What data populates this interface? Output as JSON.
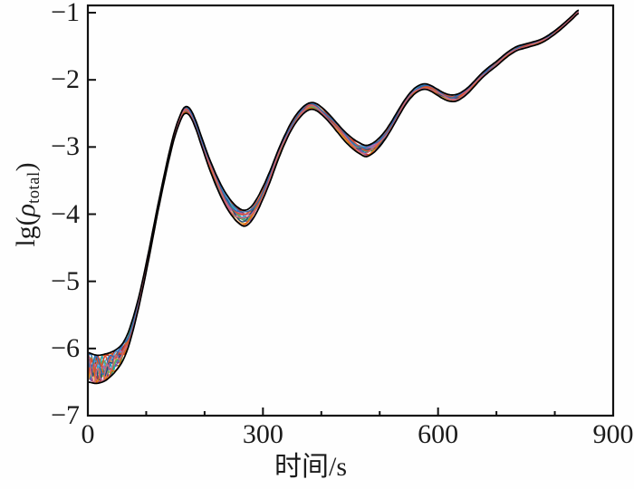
{
  "figure": {
    "background": "#fefefe",
    "frame_color": "#111111",
    "tick_color": "#111111"
  },
  "chart_data": {
    "type": "line",
    "title": "",
    "xlabel": "时间/s",
    "ylabel": {
      "prefix": "lg(",
      "symbol": "ρ",
      "subscript": "total",
      "suffix": ")"
    },
    "xlim": [
      0,
      900
    ],
    "ylim": [
      -7,
      -1
    ],
    "grid": false,
    "legend": null,
    "x_major_ticks": [
      0,
      300,
      600,
      900
    ],
    "x_tick_labels": [
      "0",
      "300",
      "600",
      "900"
    ],
    "x_minor_tick_step": 100,
    "y_major_ticks": [
      -1,
      -2,
      -3,
      -4,
      -5,
      -6,
      -7
    ],
    "y_tick_labels": [
      "−1",
      "−2",
      "−3",
      "−4",
      "−5",
      "−6",
      "−7"
    ],
    "note": "Bundle of ~16 nearly identical repeat curves (colored) inside a black envelope",
    "base_curve": [
      [
        0,
        -6.28
      ],
      [
        15,
        -6.31
      ],
      [
        30,
        -6.28
      ],
      [
        45,
        -6.2
      ],
      [
        58,
        -6.08
      ],
      [
        68,
        -5.9
      ],
      [
        78,
        -5.62
      ],
      [
        88,
        -5.28
      ],
      [
        98,
        -4.88
      ],
      [
        108,
        -4.45
      ],
      [
        118,
        -4.0
      ],
      [
        128,
        -3.58
      ],
      [
        138,
        -3.18
      ],
      [
        148,
        -2.83
      ],
      [
        157,
        -2.6
      ],
      [
        164,
        -2.47
      ],
      [
        170,
        -2.45
      ],
      [
        176,
        -2.5
      ],
      [
        184,
        -2.65
      ],
      [
        194,
        -2.9
      ],
      [
        206,
        -3.2
      ],
      [
        220,
        -3.5
      ],
      [
        234,
        -3.75
      ],
      [
        248,
        -3.93
      ],
      [
        260,
        -4.03
      ],
      [
        268,
        -4.06
      ],
      [
        276,
        -4.03
      ],
      [
        286,
        -3.92
      ],
      [
        298,
        -3.72
      ],
      [
        312,
        -3.44
      ],
      [
        326,
        -3.12
      ],
      [
        340,
        -2.84
      ],
      [
        352,
        -2.64
      ],
      [
        364,
        -2.5
      ],
      [
        374,
        -2.42
      ],
      [
        382,
        -2.39
      ],
      [
        390,
        -2.4
      ],
      [
        400,
        -2.46
      ],
      [
        412,
        -2.56
      ],
      [
        426,
        -2.7
      ],
      [
        440,
        -2.84
      ],
      [
        454,
        -2.95
      ],
      [
        466,
        -3.02
      ],
      [
        476,
        -3.06
      ],
      [
        486,
        -3.03
      ],
      [
        496,
        -2.96
      ],
      [
        508,
        -2.84
      ],
      [
        520,
        -2.68
      ],
      [
        532,
        -2.5
      ],
      [
        544,
        -2.33
      ],
      [
        556,
        -2.2
      ],
      [
        566,
        -2.13
      ],
      [
        576,
        -2.1
      ],
      [
        586,
        -2.12
      ],
      [
        598,
        -2.18
      ],
      [
        610,
        -2.24
      ],
      [
        620,
        -2.27
      ],
      [
        630,
        -2.27
      ],
      [
        640,
        -2.23
      ],
      [
        652,
        -2.15
      ],
      [
        664,
        -2.04
      ],
      [
        676,
        -1.93
      ],
      [
        688,
        -1.84
      ],
      [
        700,
        -1.76
      ],
      [
        712,
        -1.67
      ],
      [
        724,
        -1.59
      ],
      [
        736,
        -1.53
      ],
      [
        748,
        -1.5
      ],
      [
        760,
        -1.47
      ],
      [
        772,
        -1.44
      ],
      [
        784,
        -1.39
      ],
      [
        796,
        -1.32
      ],
      [
        808,
        -1.24
      ],
      [
        820,
        -1.15
      ],
      [
        830,
        -1.07
      ],
      [
        840,
        -0.99
      ]
    ],
    "band_halfwidth": [
      [
        0,
        0.22
      ],
      [
        30,
        0.2
      ],
      [
        60,
        0.13
      ],
      [
        90,
        0.07
      ],
      [
        120,
        0.05
      ],
      [
        160,
        0.045
      ],
      [
        200,
        0.07
      ],
      [
        240,
        0.1
      ],
      [
        268,
        0.12
      ],
      [
        300,
        0.09
      ],
      [
        340,
        0.06
      ],
      [
        382,
        0.05
      ],
      [
        420,
        0.06
      ],
      [
        450,
        0.075
      ],
      [
        476,
        0.085
      ],
      [
        510,
        0.06
      ],
      [
        545,
        0.045
      ],
      [
        576,
        0.04
      ],
      [
        600,
        0.045
      ],
      [
        630,
        0.05
      ],
      [
        660,
        0.04
      ],
      [
        700,
        0.035
      ],
      [
        750,
        0.03
      ],
      [
        800,
        0.027
      ],
      [
        840,
        0.025
      ]
    ],
    "envelope_color": "#000000",
    "series": [
      {
        "color": "#e06b10",
        "u": 0.85
      },
      {
        "color": "#cc2a2a",
        "u": -0.85
      },
      {
        "color": "#2e6db4",
        "u": 0.25
      },
      {
        "color": "#2f9e44",
        "u": -0.45
      },
      {
        "color": "#19b0c4",
        "u": 0.0
      },
      {
        "color": "#7a4fa8",
        "u": -0.65
      },
      {
        "color": "#a52a2a",
        "u": 0.65
      },
      {
        "color": "#e8a33d",
        "u": -0.25
      },
      {
        "color": "#4aa3df",
        "u": 0.45
      },
      {
        "color": "#6aa84f",
        "u": -0.05
      },
      {
        "color": "#c05c9e",
        "u": 0.1
      },
      {
        "color": "#1f4e79",
        "u": -0.15
      },
      {
        "color": "#e06b10",
        "u": -0.75
      },
      {
        "color": "#d94f30",
        "u": 0.35
      },
      {
        "color": "#2e6db4",
        "u": 0.55
      },
      {
        "color": "#cc6677",
        "u": -0.35
      }
    ]
  }
}
